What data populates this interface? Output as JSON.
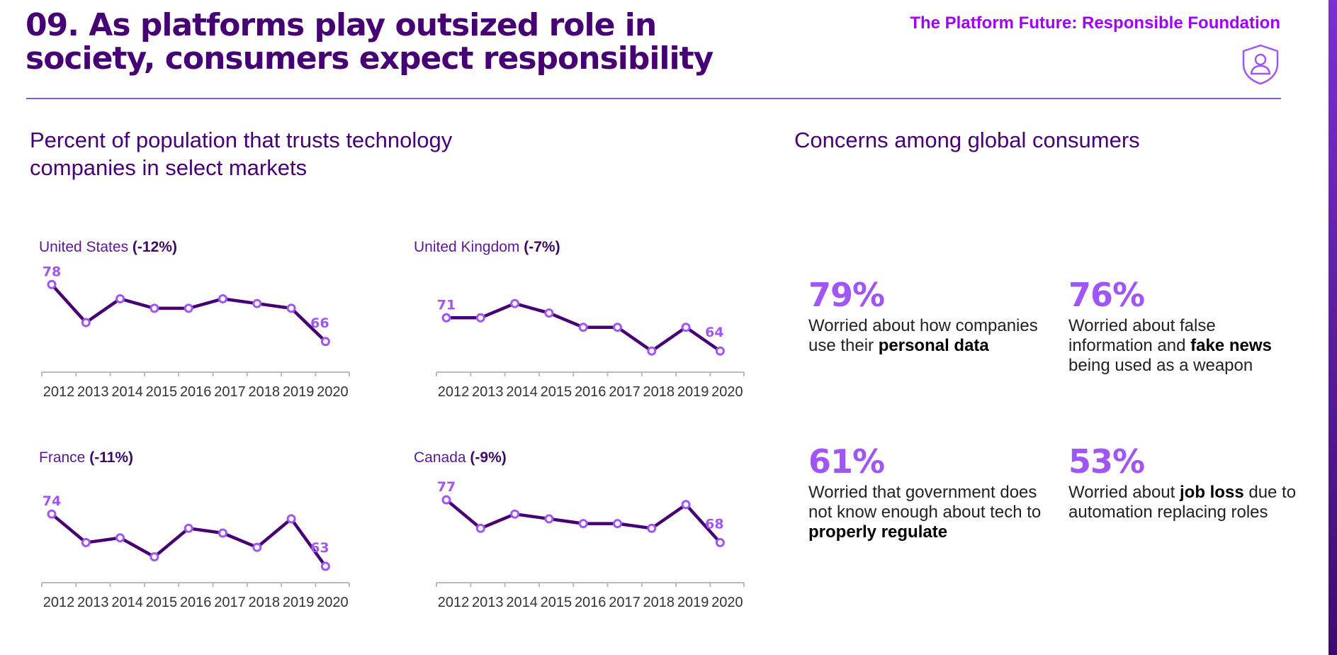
{
  "header": {
    "title_line1": "09. As platforms play outsized role in",
    "title_line2": "society, consumers expect responsibility",
    "section_label": "The Platform Future: Responsible Foundation",
    "section_icon": "shield-person-icon"
  },
  "trust_section": {
    "heading_line1": "Percent of population that trusts technology",
    "heading_line2": "companies in select markets"
  },
  "concerns_section": {
    "heading": "Concerns among global consumers",
    "stats": [
      {
        "value": "79%",
        "text_pre": "Worried about how companies use their ",
        "text_bold": "personal data",
        "text_post": ""
      },
      {
        "value": "76%",
        "text_pre": "Worried about false information and ",
        "text_bold": "fake news",
        "text_post": " being used as a weapon"
      },
      {
        "value": "61%",
        "text_pre": "Worried that government does not know enough about tech to ",
        "text_bold": "properly regulate",
        "text_post": ""
      },
      {
        "value": "53%",
        "text_pre": "Worried about ",
        "text_bold": "job loss",
        "text_post": " due to automation replacing roles"
      }
    ]
  },
  "colors": {
    "line": "#460073",
    "point": "#a055f5",
    "accent": "#a100ff",
    "axis": "#bbbbbb",
    "tick_text": "#333333"
  },
  "chart_data": [
    {
      "type": "line",
      "country": "United States",
      "change": "(-12%)",
      "x": [
        "2012",
        "2013",
        "2014",
        "2015",
        "2016",
        "2017",
        "2018",
        "2019",
        "2020"
      ],
      "values": [
        78,
        70,
        75,
        73,
        73,
        75,
        74,
        73,
        66
      ],
      "first_label": "78",
      "last_label": "66"
    },
    {
      "type": "line",
      "country": "United Kingdom",
      "change": "(-7%)",
      "x": [
        "2012",
        "2013",
        "2014",
        "2015",
        "2016",
        "2017",
        "2018",
        "2019",
        "2020"
      ],
      "values": [
        71,
        71,
        74,
        72,
        69,
        69,
        64,
        69,
        64
      ],
      "first_label": "71",
      "last_label": "64"
    },
    {
      "type": "line",
      "country": "France",
      "change": "(-11%)",
      "x": [
        "2012",
        "2013",
        "2014",
        "2015",
        "2016",
        "2017",
        "2018",
        "2019",
        "2020"
      ],
      "values": [
        74,
        68,
        69,
        65,
        71,
        70,
        67,
        73,
        63
      ],
      "first_label": "74",
      "last_label": "63"
    },
    {
      "type": "line",
      "country": "Canada",
      "change": "(-9%)",
      "x": [
        "2012",
        "2013",
        "2014",
        "2015",
        "2016",
        "2017",
        "2018",
        "2019",
        "2020"
      ],
      "values": [
        77,
        71,
        74,
        73,
        72,
        72,
        71,
        76,
        68
      ],
      "first_label": "77",
      "last_label": "68"
    }
  ]
}
